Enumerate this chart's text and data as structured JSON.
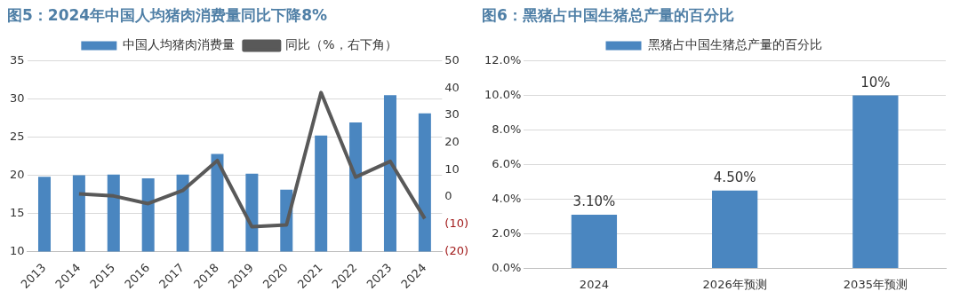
{
  "chart_data": [
    {
      "type": "bar",
      "title": "图5：2024年中国人均猪肉消费量同比下降8%",
      "categories": [
        "2013",
        "2014",
        "2015",
        "2016",
        "2017",
        "2018",
        "2019",
        "2020",
        "2021",
        "2022",
        "2023",
        "2024"
      ],
      "series": [
        {
          "name": "中国人均猪肉消费量",
          "color": "#4a86c0",
          "values": [
            19.8,
            20.0,
            20.1,
            19.6,
            20.1,
            22.8,
            20.2,
            18.1,
            25.2,
            26.9,
            30.5,
            28.1
          ]
        },
        {
          "name": "同比（%，右下角）",
          "type": "line",
          "axis": "y2",
          "color": "#595959",
          "values": [
            null,
            1.2,
            0.4,
            -2.4,
            2.4,
            13.4,
            -10.9,
            -10.2,
            38.3,
            7.3,
            13.1,
            -7.9
          ]
        }
      ],
      "ylim": [
        10,
        35
      ],
      "yticks": [
        10,
        15,
        20,
        25,
        30,
        35
      ],
      "y2lim": [
        -20,
        50
      ],
      "y2ticks": [
        {
          "value": -20,
          "label": "(20)"
        },
        {
          "value": -10,
          "label": "(10)"
        },
        0,
        10,
        20,
        30,
        40,
        50
      ],
      "grid": "y",
      "legend": "top",
      "marker": "none",
      "line_style": "solid"
    },
    {
      "type": "bar",
      "title": "图6：黑猪占中国生猪总产量的百分比",
      "categories": [
        "2024",
        "2026年预测",
        "2035年预测"
      ],
      "series": [
        {
          "name": "黑猪占中国生猪总产量的百分比",
          "color": "#4a86c0",
          "values": [
            3.1,
            4.5,
            10
          ],
          "value_labels": [
            "3.10%",
            "4.50%",
            "10%"
          ]
        }
      ],
      "ylim": [
        0,
        12
      ],
      "yticks": [
        {
          "value": 0,
          "label": "0.0%"
        },
        {
          "value": 2,
          "label": "2.0%"
        },
        {
          "value": 4,
          "label": "4.0%"
        },
        {
          "value": 6,
          "label": "6.0%"
        },
        {
          "value": 8,
          "label": "8.0%"
        },
        {
          "value": 10,
          "label": "10.0%"
        },
        {
          "value": 12,
          "label": "12.0%"
        }
      ],
      "grid": "y",
      "legend": "top"
    }
  ]
}
